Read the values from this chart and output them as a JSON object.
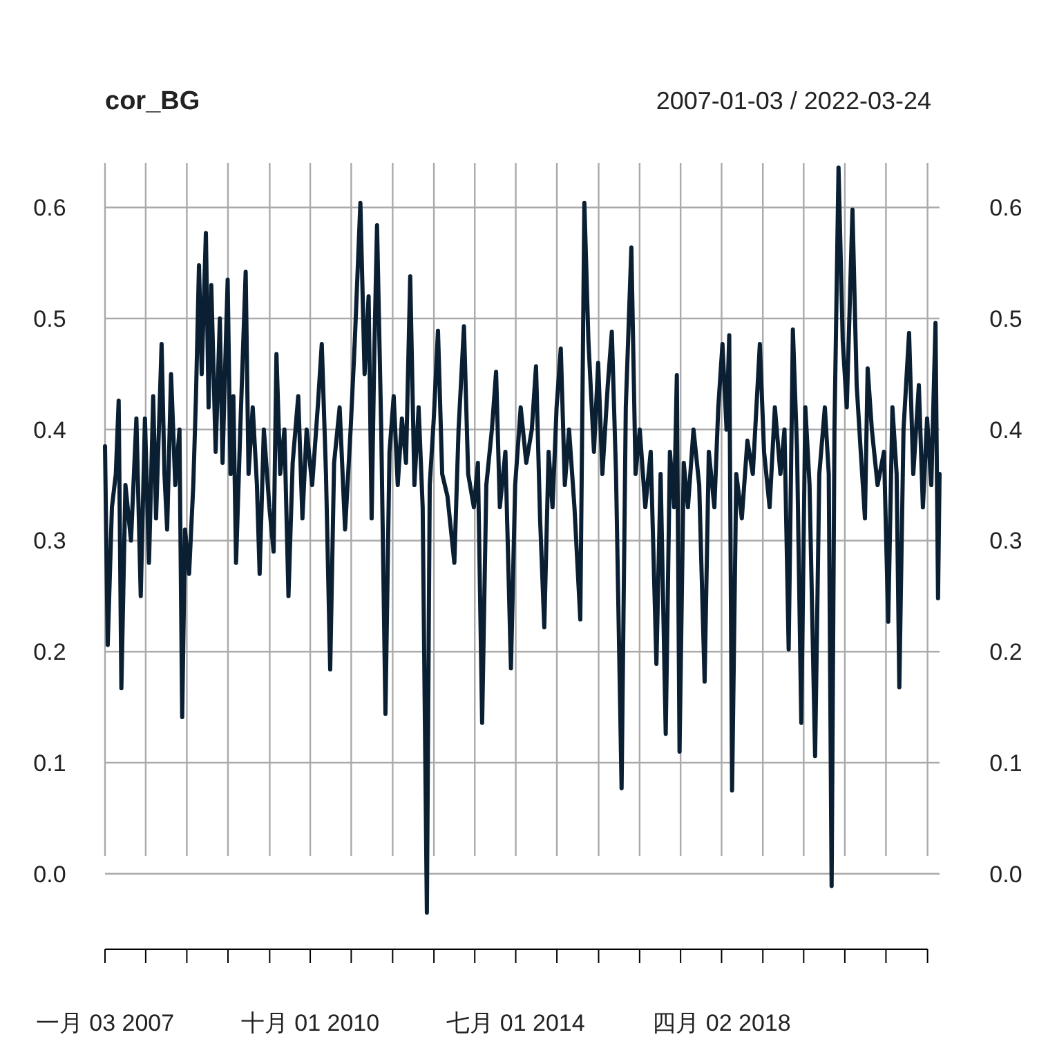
{
  "chart_data": {
    "type": "line",
    "title": "cor_BG",
    "subtitle": "2007-01-03 / 2022-03-24",
    "xlim": [
      "2007-01-03",
      "2022-03-24"
    ],
    "xticks": [
      {
        "value": "2007-01-03",
        "label": "一月 03 2007"
      },
      {
        "value": "2007-10-01",
        "label": null
      },
      {
        "value": "2008-07-01",
        "label": null
      },
      {
        "value": "2009-04-01",
        "label": null
      },
      {
        "value": "2010-01-04",
        "label": null
      },
      {
        "value": "2010-10-01",
        "label": "十月 01 2010"
      },
      {
        "value": "2011-07-01",
        "label": null
      },
      {
        "value": "2012-04-02",
        "label": null
      },
      {
        "value": "2013-01-02",
        "label": null
      },
      {
        "value": "2013-10-01",
        "label": null
      },
      {
        "value": "2014-07-01",
        "label": "七月 01 2014"
      },
      {
        "value": "2015-04-01",
        "label": null
      },
      {
        "value": "2016-01-04",
        "label": null
      },
      {
        "value": "2016-10-03",
        "label": null
      },
      {
        "value": "2017-07-03",
        "label": null
      },
      {
        "value": "2018-04-02",
        "label": "四月 02 2018"
      },
      {
        "value": "2019-01-02",
        "label": null
      },
      {
        "value": "2019-10-01",
        "label": null
      },
      {
        "value": "2020-07-01",
        "label": null
      },
      {
        "value": "2021-04-01",
        "label": null
      },
      {
        "value": "2022-01-03",
        "label": null
      }
    ],
    "ylim": [
      -0.068,
      0.64
    ],
    "yticks": [
      {
        "value": 0,
        "label": "0.0"
      },
      {
        "value": 0.1,
        "label": "0.1"
      },
      {
        "value": 0.2,
        "label": "0.2"
      },
      {
        "value": 0.3,
        "label": "0.3"
      },
      {
        "value": 0.4,
        "label": "0.4"
      },
      {
        "value": 0.5,
        "label": "0.5"
      },
      {
        "value": 0.6,
        "label": "0.6"
      }
    ],
    "y2lim": [
      -0.068,
      0.64
    ],
    "y2ticks": [
      {
        "value": 0,
        "label": "0.0"
      },
      {
        "value": 0.1,
        "label": "0.1"
      },
      {
        "value": 0.2,
        "label": "0.2"
      },
      {
        "value": 0.3,
        "label": "0.3"
      },
      {
        "value": 0.4,
        "label": "0.4"
      },
      {
        "value": 0.5,
        "label": "0.5"
      },
      {
        "value": 0.6,
        "label": "0.6"
      }
    ],
    "grid": true,
    "x": [
      "2007-01-03",
      "2007-01-21",
      "2007-02-18",
      "2007-03-16",
      "2007-04-04",
      "2007-04-22",
      "2007-05-19",
      "2007-06-25",
      "2007-07-31",
      "2007-08-29",
      "2007-09-26",
      "2007-10-23",
      "2007-11-20",
      "2007-12-09",
      "2008-01-15",
      "2008-02-03",
      "2008-02-21",
      "2008-03-18",
      "2008-04-15",
      "2008-05-13",
      "2008-05-31",
      "2008-06-19",
      "2008-07-16",
      "2008-08-13",
      "2008-08-31",
      "2008-09-20",
      "2008-10-08",
      "2008-11-05",
      "2008-11-23",
      "2008-12-11",
      "2009-01-09",
      "2009-02-06",
      "2009-02-24",
      "2009-03-12",
      "2009-03-30",
      "2009-04-18",
      "2009-05-07",
      "2009-05-25",
      "2009-06-22",
      "2009-07-28",
      "2009-08-16",
      "2009-09-13",
      "2009-10-11",
      "2009-10-29",
      "2009-11-26",
      "2010-01-02",
      "2010-01-30",
      "2010-02-18",
      "2010-03-15",
      "2010-04-12",
      "2010-05-09",
      "2010-06-06",
      "2010-07-13",
      "2010-08-10",
      "2010-09-07",
      "2010-10-14",
      "2010-11-20",
      "2010-12-17",
      "2011-01-14",
      "2011-02-11",
      "2011-03-09",
      "2011-04-15",
      "2011-05-21",
      "2011-06-27",
      "2011-07-25",
      "2011-08-31",
      "2011-09-28",
      "2011-10-25",
      "2011-11-14",
      "2011-12-02",
      "2011-12-20",
      "2012-01-17",
      "2012-02-14",
      "2012-03-12",
      "2012-04-09",
      "2012-05-06",
      "2012-06-03",
      "2012-06-30",
      "2012-07-28",
      "2012-08-25",
      "2012-09-22",
      "2012-10-19",
      "2012-11-16",
      "2012-12-05",
      "2013-01-01",
      "2013-01-29",
      "2013-02-26",
      "2013-04-02",
      "2013-05-18",
      "2013-06-15",
      "2013-07-21",
      "2013-08-18",
      "2013-09-25",
      "2013-10-22",
      "2013-11-19",
      "2013-12-17",
      "2014-01-23",
      "2014-02-20",
      "2014-03-17",
      "2014-04-23",
      "2014-05-30",
      "2014-06-27",
      "2014-08-03",
      "2014-09-09",
      "2014-10-16",
      "2014-11-13",
      "2014-12-10",
      "2015-01-07",
      "2015-02-05",
      "2015-03-03",
      "2015-03-30",
      "2015-04-27",
      "2015-05-24",
      "2015-06-21",
      "2015-07-27",
      "2015-09-04",
      "2015-10-01",
      "2015-10-28",
      "2015-12-04",
      "2016-01-01",
      "2016-01-29",
      "2016-03-05",
      "2016-04-01",
      "2016-04-29",
      "2016-06-05",
      "2016-07-03",
      "2016-08-09",
      "2016-09-06",
      "2016-10-04",
      "2016-11-10",
      "2016-12-16",
      "2017-01-23",
      "2017-02-20",
      "2017-03-26",
      "2017-04-23",
      "2017-05-21",
      "2017-06-08",
      "2017-06-26",
      "2017-07-24",
      "2017-08-21",
      "2017-09-27",
      "2017-11-04",
      "2017-12-10",
      "2018-01-07",
      "2018-02-13",
      "2018-03-11",
      "2018-04-08",
      "2018-05-05",
      "2018-05-23",
      "2018-06-11",
      "2018-07-09",
      "2018-08-15",
      "2018-09-21",
      "2018-10-27",
      "2018-12-13",
      "2019-01-10",
      "2019-02-16",
      "2019-03-23",
      "2019-04-29",
      "2019-05-26",
      "2019-06-23",
      "2019-07-21",
      "2019-08-18",
      "2019-09-15",
      "2019-10-12",
      "2019-11-09",
      "2019-12-16",
      "2020-01-13",
      "2020-02-19",
      "2020-03-16",
      "2020-04-04",
      "2020-04-23",
      "2020-05-20",
      "2020-06-17",
      "2020-07-14",
      "2020-08-21",
      "2020-09-18",
      "2020-10-15",
      "2020-11-12",
      "2020-11-30",
      "2020-12-28",
      "2021-02-04",
      "2021-03-19",
      "2021-04-16",
      "2021-05-14",
      "2021-06-11",
      "2021-06-29",
      "2021-07-27",
      "2021-09-02",
      "2021-09-30",
      "2021-11-06",
      "2021-12-03",
      "2021-12-31",
      "2022-01-28",
      "2022-02-25",
      "2022-03-14",
      "2022-03-24"
    ],
    "series": [
      {
        "color": "#0b1f33",
        "values": [
          0.385,
          0.206,
          0.33,
          0.36,
          0.426,
          0.167,
          0.35,
          0.3,
          0.41,
          0.25,
          0.41,
          0.28,
          0.43,
          0.32,
          0.477,
          0.36,
          0.31,
          0.45,
          0.35,
          0.4,
          0.141,
          0.31,
          0.27,
          0.35,
          0.43,
          0.548,
          0.45,
          0.577,
          0.42,
          0.53,
          0.38,
          0.5,
          0.37,
          0.45,
          0.535,
          0.36,
          0.43,
          0.28,
          0.4,
          0.542,
          0.36,
          0.42,
          0.35,
          0.27,
          0.4,
          0.33,
          0.29,
          0.468,
          0.36,
          0.4,
          0.25,
          0.37,
          0.43,
          0.32,
          0.4,
          0.35,
          0.42,
          0.477,
          0.36,
          0.184,
          0.37,
          0.42,
          0.31,
          0.4,
          0.48,
          0.604,
          0.45,
          0.52,
          0.32,
          0.47,
          0.584,
          0.4,
          0.144,
          0.38,
          0.43,
          0.35,
          0.41,
          0.37,
          0.538,
          0.35,
          0.42,
          0.33,
          -0.035,
          0.35,
          0.41,
          0.489,
          0.36,
          0.34,
          0.28,
          0.4,
          0.493,
          0.36,
          0.33,
          0.37,
          0.136,
          0.35,
          0.4,
          0.452,
          0.33,
          0.38,
          0.185,
          0.35,
          0.42,
          0.37,
          0.4,
          0.457,
          0.32,
          0.222,
          0.38,
          0.33,
          0.42,
          0.473,
          0.35,
          0.4,
          0.33,
          0.229,
          0.604,
          0.48,
          0.38,
          0.46,
          0.36,
          0.44,
          0.488,
          0.36,
          0.077,
          0.42,
          0.564,
          0.36,
          0.4,
          0.33,
          0.38,
          0.189,
          0.36,
          0.126,
          0.38,
          0.33,
          0.449,
          0.11,
          0.37,
          0.33,
          0.4,
          0.35,
          0.173,
          0.38,
          0.33,
          0.42,
          0.477,
          0.4,
          0.485,
          0.075,
          0.36,
          0.32,
          0.39,
          0.36,
          0.477,
          0.38,
          0.33,
          0.42,
          0.36,
          0.4,
          0.202,
          0.49,
          0.38,
          0.136,
          0.42,
          0.35,
          0.106,
          0.36,
          0.42,
          0.36,
          -0.011,
          0.4,
          0.636,
          0.48,
          0.42,
          0.598,
          0.44,
          0.38,
          0.32,
          0.455,
          0.4,
          0.35,
          0.38,
          0.227,
          0.42,
          0.36,
          0.168,
          0.4,
          0.487,
          0.36,
          0.44,
          0.33,
          0.41,
          0.35,
          0.496,
          0.248,
          0.36
        ]
      }
    ]
  }
}
